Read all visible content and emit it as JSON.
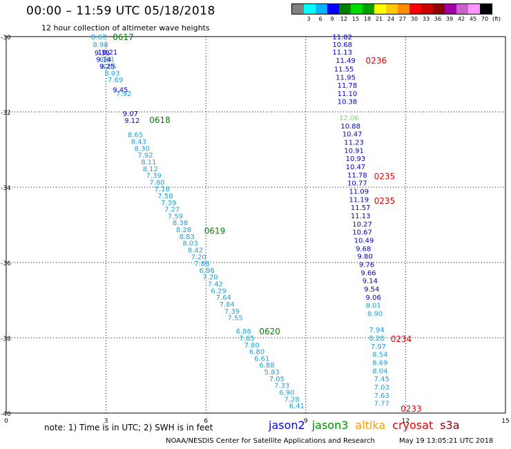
{
  "header": {
    "title": "00:00 – 11:59 UTC 05/18/2018",
    "subtitle": "12 hour collection of altimeter wave heights"
  },
  "legend": {
    "colors": [
      "#808080",
      "#00ffff",
      "#00b4ff",
      "#0000ff",
      "#008000",
      "#00dc00",
      "#00a000",
      "#ffff00",
      "#ffc800",
      "#ff8c00",
      "#ff0000",
      "#c80000",
      "#8c0000",
      "#a000a0",
      "#c864c8",
      "#ff96ff",
      "#000000"
    ],
    "labels": [
      "3",
      "6",
      "9",
      "12",
      "15",
      "18",
      "21",
      "24",
      "27",
      "30",
      "33",
      "36",
      "39",
      "42",
      "45",
      "70",
      "(ft)"
    ]
  },
  "map": {
    "x_ticks": [
      "0",
      "3",
      "6",
      "9",
      "12",
      "15"
    ],
    "y_ticks": [
      "-30",
      "-32",
      "-34",
      "-36",
      "-38",
      "-40"
    ],
    "lon_range": [
      0,
      15
    ],
    "lat_range": [
      -30,
      -40
    ],
    "gridline_color": "#000000",
    "tracks": [
      {
        "color": "#1ea0dc",
        "points": [
          {
            "lon": 2.55,
            "lat": -30.0,
            "v": "8.67"
          },
          {
            "lon": 2.6,
            "lat": -30.2,
            "v": "8.98"
          },
          {
            "lon": 2.75,
            "lat": -30.4,
            "v": "10.21",
            "c": "#0000ff"
          },
          {
            "lon": 2.8,
            "lat": -30.6,
            "v": "8.61"
          },
          {
            "lon": 2.85,
            "lat": -30.78,
            "v": "8.65"
          },
          {
            "lon": 2.95,
            "lat": -30.96,
            "v": "8.93"
          },
          {
            "lon": 3.05,
            "lat": -31.14,
            "v": "7.69"
          },
          {
            "lon": 3.3,
            "lat": -31.5,
            "v": "7.92"
          },
          {
            "lon": 3.65,
            "lat": -32.6,
            "v": "8.65"
          },
          {
            "lon": 3.75,
            "lat": -32.78,
            "v": "8.43"
          },
          {
            "lon": 3.85,
            "lat": -32.96,
            "v": "8.30"
          },
          {
            "lon": 3.95,
            "lat": -33.14,
            "v": "7.92"
          },
          {
            "lon": 4.05,
            "lat": -33.32,
            "v": "8.11"
          },
          {
            "lon": 4.1,
            "lat": -33.5,
            "v": "8.12"
          },
          {
            "lon": 4.2,
            "lat": -33.68,
            "v": "7.39"
          },
          {
            "lon": 4.3,
            "lat": -33.86,
            "v": "7.80"
          },
          {
            "lon": 4.45,
            "lat": -34.04,
            "v": "7.18"
          },
          {
            "lon": 4.55,
            "lat": -34.22,
            "v": "7.58"
          },
          {
            "lon": 4.65,
            "lat": -34.4,
            "v": "7.39"
          },
          {
            "lon": 4.75,
            "lat": -34.58,
            "v": "7.27"
          },
          {
            "lon": 4.85,
            "lat": -34.76,
            "v": "7.59"
          },
          {
            "lon": 5.0,
            "lat": -34.94,
            "v": "8.38"
          },
          {
            "lon": 5.1,
            "lat": -35.12,
            "v": "8.28"
          },
          {
            "lon": 5.2,
            "lat": -35.3,
            "v": "8.83"
          },
          {
            "lon": 5.3,
            "lat": -35.48,
            "v": "8.03"
          },
          {
            "lon": 5.45,
            "lat": -35.66,
            "v": "8.42"
          },
          {
            "lon": 5.55,
            "lat": -35.84,
            "v": "7.20"
          },
          {
            "lon": 5.65,
            "lat": -36.02,
            "v": "7.86"
          },
          {
            "lon": 5.8,
            "lat": -36.2,
            "v": "6.96"
          },
          {
            "lon": 5.9,
            "lat": -36.38,
            "v": "7.20"
          },
          {
            "lon": 6.05,
            "lat": -36.56,
            "v": "7.42"
          },
          {
            "lon": 6.15,
            "lat": -36.74,
            "v": "6.29"
          },
          {
            "lon": 6.3,
            "lat": -36.92,
            "v": "7.64"
          },
          {
            "lon": 6.4,
            "lat": -37.1,
            "v": "7.84"
          },
          {
            "lon": 6.55,
            "lat": -37.28,
            "v": "7.39"
          },
          {
            "lon": 6.65,
            "lat": -37.46,
            "v": "7.55"
          },
          {
            "lon": 6.9,
            "lat": -37.82,
            "v": "6.86"
          },
          {
            "lon": 7.0,
            "lat": -38.0,
            "v": "7.65"
          },
          {
            "lon": 7.15,
            "lat": -38.18,
            "v": "7.80"
          },
          {
            "lon": 7.3,
            "lat": -38.36,
            "v": "6.80"
          },
          {
            "lon": 7.45,
            "lat": -38.54,
            "v": "6.61"
          },
          {
            "lon": 7.6,
            "lat": -38.72,
            "v": "6.88"
          },
          {
            "lon": 7.75,
            "lat": -38.9,
            "v": "5.83"
          },
          {
            "lon": 7.9,
            "lat": -39.08,
            "v": "7.05"
          },
          {
            "lon": 8.05,
            "lat": -39.26,
            "v": "7.33"
          },
          {
            "lon": 8.2,
            "lat": -39.44,
            "v": "6.90"
          },
          {
            "lon": 8.35,
            "lat": -39.62,
            "v": "7.28"
          },
          {
            "lon": 8.5,
            "lat": -39.8,
            "v": "6.41"
          }
        ]
      },
      {
        "color": "#0000c8",
        "points": [
          {
            "lon": 2.65,
            "lat": -30.42,
            "v": "9.38"
          },
          {
            "lon": 2.7,
            "lat": -30.6,
            "v": "9.14"
          },
          {
            "lon": 2.8,
            "lat": -30.78,
            "v": "9.25"
          },
          {
            "lon": 3.2,
            "lat": -31.4,
            "v": "9.45"
          },
          {
            "lon": 3.5,
            "lat": -32.04,
            "v": "9.07"
          },
          {
            "lon": 3.55,
            "lat": -32.22,
            "v": "9.12"
          }
        ]
      },
      {
        "color": "#0000c8",
        "points": [
          {
            "lon": 9.8,
            "lat": -30.0,
            "v": "11.82"
          },
          {
            "lon": 9.8,
            "lat": -30.2,
            "v": "10.68"
          },
          {
            "lon": 9.8,
            "lat": -30.4,
            "v": "11.13"
          },
          {
            "lon": 9.9,
            "lat": -30.62,
            "v": "11.49"
          },
          {
            "lon": 9.85,
            "lat": -30.85,
            "v": "11.55"
          },
          {
            "lon": 9.9,
            "lat": -31.07,
            "v": "11.95"
          },
          {
            "lon": 9.95,
            "lat": -31.28,
            "v": "11.78"
          },
          {
            "lon": 9.95,
            "lat": -31.5,
            "v": "11.10"
          },
          {
            "lon": 9.95,
            "lat": -31.72,
            "v": "10.38"
          },
          {
            "lon": 10.0,
            "lat": -32.15,
            "v": "12.06",
            "c": "#70e070"
          },
          {
            "lon": 10.05,
            "lat": -32.37,
            "v": "10.88"
          },
          {
            "lon": 10.1,
            "lat": -32.58,
            "v": "10.47"
          },
          {
            "lon": 10.15,
            "lat": -32.8,
            "v": "11.23"
          },
          {
            "lon": 10.15,
            "lat": -33.02,
            "v": "10.91"
          },
          {
            "lon": 10.2,
            "lat": -33.23,
            "v": "10.93"
          },
          {
            "lon": 10.2,
            "lat": -33.45,
            "v": "10.47"
          },
          {
            "lon": 10.25,
            "lat": -33.67,
            "v": "11.78"
          },
          {
            "lon": 10.25,
            "lat": -33.88,
            "v": "10.77"
          },
          {
            "lon": 10.3,
            "lat": -34.1,
            "v": "11.09"
          },
          {
            "lon": 10.3,
            "lat": -34.32,
            "v": "11.19"
          },
          {
            "lon": 10.35,
            "lat": -34.53,
            "v": "11.57"
          },
          {
            "lon": 10.35,
            "lat": -34.75,
            "v": "11.13"
          },
          {
            "lon": 10.4,
            "lat": -34.97,
            "v": "10.27"
          },
          {
            "lon": 10.4,
            "lat": -35.18,
            "v": "10.67"
          },
          {
            "lon": 10.45,
            "lat": -35.4,
            "v": "10.49"
          },
          {
            "lon": 10.5,
            "lat": -35.62,
            "v": "9.68"
          },
          {
            "lon": 10.55,
            "lat": -35.83,
            "v": "9.80"
          },
          {
            "lon": 10.6,
            "lat": -36.05,
            "v": "9.76"
          },
          {
            "lon": 10.65,
            "lat": -36.27,
            "v": "9.66"
          },
          {
            "lon": 10.7,
            "lat": -36.48,
            "v": "9.14"
          },
          {
            "lon": 10.75,
            "lat": -36.7,
            "v": "9.54"
          },
          {
            "lon": 10.8,
            "lat": -36.92,
            "v": "9.06"
          }
        ]
      },
      {
        "color": "#1ea0dc",
        "points": [
          {
            "lon": 10.8,
            "lat": -37.13,
            "v": "8.01"
          },
          {
            "lon": 10.85,
            "lat": -37.35,
            "v": "8.90"
          },
          {
            "lon": 10.9,
            "lat": -37.78,
            "v": "7.94"
          },
          {
            "lon": 10.9,
            "lat": -38.0,
            "v": "8.28"
          },
          {
            "lon": 10.95,
            "lat": -38.22,
            "v": "7.97"
          },
          {
            "lon": 11.0,
            "lat": -38.43,
            "v": "8.54"
          },
          {
            "lon": 11.0,
            "lat": -38.65,
            "v": "8.69"
          },
          {
            "lon": 11.0,
            "lat": -38.87,
            "v": "8.04"
          },
          {
            "lon": 11.05,
            "lat": -39.08,
            "v": "7.45"
          },
          {
            "lon": 11.05,
            "lat": -39.3,
            "v": "7.03"
          },
          {
            "lon": 11.05,
            "lat": -39.52,
            "v": "7.63"
          },
          {
            "lon": 11.05,
            "lat": -39.73,
            "v": "7.77"
          }
        ]
      }
    ],
    "pass_labels": [
      {
        "lon": 3.2,
        "lat": -30.0,
        "text": "0617",
        "color": "#008000"
      },
      {
        "lon": 4.3,
        "lat": -32.2,
        "text": "0618",
        "color": "#008000"
      },
      {
        "lon": 5.95,
        "lat": -35.15,
        "text": "0619",
        "color": "#008000"
      },
      {
        "lon": 7.6,
        "lat": -37.82,
        "text": "0620",
        "color": "#008000"
      },
      {
        "lon": 10.8,
        "lat": -30.62,
        "text": "0236",
        "color": "#e00000"
      },
      {
        "lon": 11.05,
        "lat": -33.7,
        "text": "0235",
        "color": "#e00000"
      },
      {
        "lon": 11.05,
        "lat": -34.35,
        "text": "0235",
        "color": "#e00000"
      },
      {
        "lon": 11.55,
        "lat": -38.02,
        "text": "0234",
        "color": "#e00000"
      },
      {
        "lon": 11.85,
        "lat": -39.87,
        "text": "0233",
        "color": "#e00000"
      }
    ]
  },
  "footer": {
    "note": "note:  1) Time is in UTC;  2) SWH is in feet",
    "satellites": [
      {
        "name": "jason2",
        "color": "#0000ff"
      },
      {
        "name": "jason3",
        "color": "#009000"
      },
      {
        "name": "altika",
        "color": "#ff9900"
      },
      {
        "name": "cryosat",
        "color": "#e00000"
      },
      {
        "name": "s3a",
        "color": "#8c0000"
      }
    ],
    "credit": "NOAA/NESDIS Center for Satellite Applications and Research",
    "timestamp": "May 19 13:05:21 UTC 2018"
  }
}
